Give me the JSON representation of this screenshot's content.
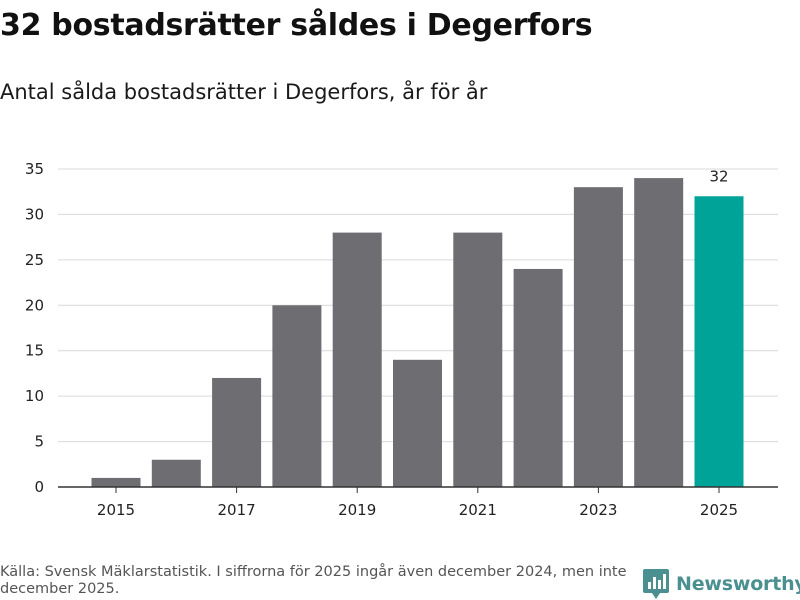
{
  "header": {
    "title": "32 bostadsrätter såldes i Degerfors",
    "subtitle": "Antal sålda bostadsrätter i Degerfors, år för år"
  },
  "footer": {
    "source": "Källa: Svensk Mäklarstatistik. I siffrorna för 2025 ingår även december 2024, men inte december 2025.",
    "brand": "Newsworthy"
  },
  "colors": {
    "bar": "#6e6d72",
    "highlight": "#00a398",
    "grid": "#d9d9d9",
    "axis": "#333333",
    "brand": "#4a9090"
  },
  "chart_data": {
    "type": "bar",
    "title": "Antal sålda bostadsrätter i Degerfors, år för år",
    "xlabel": "",
    "ylabel": "",
    "categories": [
      "2015",
      "2016",
      "2017",
      "2018",
      "2019",
      "2020",
      "2021",
      "2022",
      "2023",
      "2024",
      "2025"
    ],
    "values": [
      1,
      3,
      12,
      20,
      28,
      14,
      28,
      24,
      33,
      34,
      32
    ],
    "highlight_index": 10,
    "data_labels": [
      {
        "index": 10,
        "text": "32"
      }
    ],
    "x_tick_labels": [
      "2015",
      "2017",
      "2019",
      "2021",
      "2023",
      "2025"
    ],
    "y_ticks": [
      0,
      5,
      10,
      15,
      20,
      25,
      30,
      35
    ],
    "ylim": [
      0,
      35
    ],
    "grid": true,
    "legend": "none"
  }
}
